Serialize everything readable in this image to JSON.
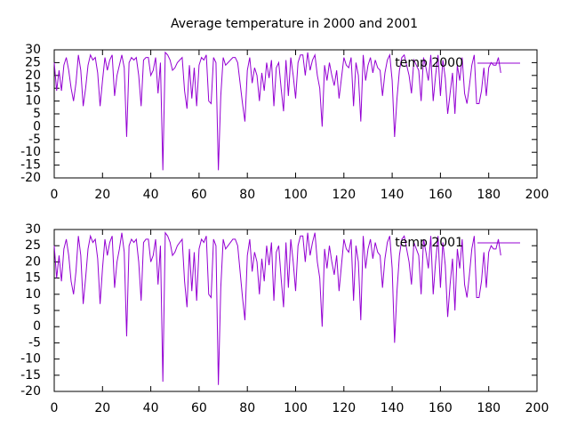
{
  "title": "Average temperature in 2000 and 2001",
  "chart_data": [
    {
      "type": "line",
      "x": [
        0,
        1,
        2,
        3,
        4,
        5,
        6,
        7,
        8,
        9,
        10,
        11,
        12,
        13,
        14,
        15,
        16,
        17,
        18,
        19,
        20,
        21,
        22,
        23,
        24,
        25,
        26,
        27,
        28,
        29,
        30,
        31,
        32,
        33,
        34,
        35,
        36,
        37,
        38,
        39,
        40,
        41,
        42,
        43,
        44,
        45,
        46,
        47,
        48,
        49,
        50,
        51,
        52,
        53,
        54,
        55,
        56,
        57,
        58,
        59,
        60,
        61,
        62,
        63,
        64,
        65,
        66,
        67,
        68,
        69,
        70,
        71,
        72,
        73,
        74,
        75,
        76,
        77,
        78,
        79,
        80,
        81,
        82,
        83,
        84,
        85,
        86,
        87,
        88,
        89,
        90,
        91,
        92,
        93,
        94,
        95,
        96,
        97,
        98,
        99,
        100,
        101,
        102,
        103,
        104,
        105,
        106,
        107,
        108,
        109,
        110,
        111,
        112,
        113,
        114,
        115,
        116,
        117,
        118,
        119,
        120,
        121,
        122,
        123,
        124,
        125,
        126,
        127,
        128,
        129,
        130,
        131,
        132,
        133,
        134,
        135,
        136,
        137,
        138,
        139,
        140,
        141,
        142,
        143,
        144,
        145,
        146,
        147,
        148,
        149,
        150,
        151,
        152,
        153,
        154,
        155,
        156,
        157,
        158,
        159,
        160,
        161,
        162,
        163,
        164,
        165,
        166,
        167,
        168,
        169,
        170,
        171,
        172,
        173,
        174,
        175,
        176,
        177,
        178,
        179,
        180,
        181,
        182,
        183,
        184,
        185
      ],
      "series": [
        {
          "name": "temp 2000",
          "color": "#9400d3",
          "values": [
            25,
            14,
            22,
            14,
            24,
            27,
            22,
            15,
            10,
            17,
            28,
            22,
            8,
            15,
            24,
            28,
            26,
            27,
            21,
            8,
            18,
            27,
            22,
            26,
            28,
            12,
            20,
            24,
            28,
            23,
            -4,
            25,
            27,
            26,
            27,
            20,
            8,
            26,
            27,
            27,
            20,
            22,
            27,
            13,
            25,
            -17,
            29,
            28,
            26,
            22,
            23,
            25,
            26,
            27,
            14,
            7,
            24,
            11,
            23,
            8,
            24,
            27,
            26,
            28,
            10,
            9,
            27,
            25,
            -17,
            12,
            27,
            24,
            25,
            26,
            27,
            27,
            25,
            17,
            9,
            2,
            22,
            27,
            17,
            23,
            20,
            10,
            21,
            14,
            25,
            19,
            26,
            8,
            23,
            25,
            15,
            6,
            26,
            12,
            27,
            20,
            11,
            25,
            28,
            28,
            20,
            29,
            22,
            26,
            28,
            20,
            15,
            0,
            24,
            18,
            25,
            20,
            16,
            22,
            11,
            19,
            27,
            24,
            23,
            27,
            8,
            25,
            20,
            2,
            28,
            18,
            24,
            27,
            21,
            26,
            23,
            22,
            12,
            21,
            26,
            28,
            18,
            -4,
            11,
            22,
            27,
            28,
            24,
            20,
            13,
            26,
            24,
            22,
            10,
            27,
            23,
            18,
            28,
            10,
            20,
            28,
            12,
            26,
            19,
            5,
            13,
            21,
            5,
            24,
            18,
            27,
            13,
            9,
            16,
            24,
            28,
            9,
            9,
            14,
            23,
            12,
            23,
            25,
            24,
            24,
            27,
            21
          ]
        }
      ],
      "xlim": [
        0,
        200
      ],
      "xticks": [
        0,
        20,
        40,
        60,
        80,
        100,
        120,
        140,
        160,
        180,
        200
      ],
      "ylim": [
        -20,
        30
      ],
      "yticks": [
        -20,
        -15,
        -10,
        -5,
        0,
        5,
        10,
        15,
        20,
        25,
        30
      ]
    },
    {
      "type": "line",
      "x": [
        0,
        1,
        2,
        3,
        4,
        5,
        6,
        7,
        8,
        9,
        10,
        11,
        12,
        13,
        14,
        15,
        16,
        17,
        18,
        19,
        20,
        21,
        22,
        23,
        24,
        25,
        26,
        27,
        28,
        29,
        30,
        31,
        32,
        33,
        34,
        35,
        36,
        37,
        38,
        39,
        40,
        41,
        42,
        43,
        44,
        45,
        46,
        47,
        48,
        49,
        50,
        51,
        52,
        53,
        54,
        55,
        56,
        57,
        58,
        59,
        60,
        61,
        62,
        63,
        64,
        65,
        66,
        67,
        68,
        69,
        70,
        71,
        72,
        73,
        74,
        75,
        76,
        77,
        78,
        79,
        80,
        81,
        82,
        83,
        84,
        85,
        86,
        87,
        88,
        89,
        90,
        91,
        92,
        93,
        94,
        95,
        96,
        97,
        98,
        99,
        100,
        101,
        102,
        103,
        104,
        105,
        106,
        107,
        108,
        109,
        110,
        111,
        112,
        113,
        114,
        115,
        116,
        117,
        118,
        119,
        120,
        121,
        122,
        123,
        124,
        125,
        126,
        127,
        128,
        129,
        130,
        131,
        132,
        133,
        134,
        135,
        136,
        137,
        138,
        139,
        140,
        141,
        142,
        143,
        144,
        145,
        146,
        147,
        148,
        149,
        150,
        151,
        152,
        153,
        154,
        155,
        156,
        157,
        158,
        159,
        160,
        161,
        162,
        163,
        164,
        165,
        166,
        167,
        168,
        169,
        170,
        171,
        172,
        173,
        174,
        175,
        176,
        177,
        178,
        179,
        180,
        181,
        182,
        183,
        184,
        185
      ],
      "series": [
        {
          "name": "temp 2001",
          "color": "#9400d3",
          "values": [
            25,
            15,
            22,
            14,
            24,
            27,
            22,
            14,
            10,
            17,
            28,
            22,
            7,
            15,
            24,
            28,
            26,
            27,
            21,
            7,
            18,
            27,
            22,
            26,
            28,
            12,
            20,
            24,
            29,
            23,
            -3,
            25,
            27,
            26,
            27,
            20,
            8,
            26,
            27,
            27,
            20,
            22,
            27,
            13,
            25,
            -17,
            29,
            28,
            26,
            22,
            23,
            25,
            26,
            27,
            14,
            6,
            24,
            11,
            23,
            8,
            24,
            27,
            26,
            28,
            10,
            9,
            27,
            25,
            -18,
            12,
            27,
            24,
            25,
            26,
            27,
            27,
            25,
            17,
            9,
            2,
            22,
            27,
            17,
            23,
            20,
            10,
            21,
            14,
            25,
            19,
            26,
            8,
            23,
            25,
            15,
            6,
            26,
            12,
            27,
            20,
            11,
            25,
            28,
            28,
            20,
            29,
            22,
            26,
            29,
            20,
            15,
            0,
            24,
            18,
            25,
            20,
            16,
            22,
            11,
            19,
            27,
            24,
            23,
            27,
            8,
            25,
            20,
            2,
            28,
            18,
            24,
            27,
            21,
            26,
            23,
            22,
            12,
            21,
            26,
            28,
            18,
            -5,
            11,
            22,
            27,
            28,
            24,
            20,
            13,
            26,
            24,
            22,
            10,
            27,
            23,
            18,
            28,
            10,
            20,
            28,
            12,
            26,
            19,
            3,
            13,
            21,
            5,
            24,
            18,
            27,
            13,
            9,
            16,
            24,
            28,
            9,
            9,
            14,
            23,
            12,
            23,
            25,
            24,
            24,
            27,
            22
          ]
        }
      ],
      "xlim": [
        0,
        200
      ],
      "xticks": [
        0,
        20,
        40,
        60,
        80,
        100,
        120,
        140,
        160,
        180,
        200
      ],
      "ylim": [
        -20,
        30
      ],
      "yticks": [
        -20,
        -15,
        -10,
        -5,
        0,
        5,
        10,
        15,
        20,
        25,
        30
      ]
    }
  ]
}
